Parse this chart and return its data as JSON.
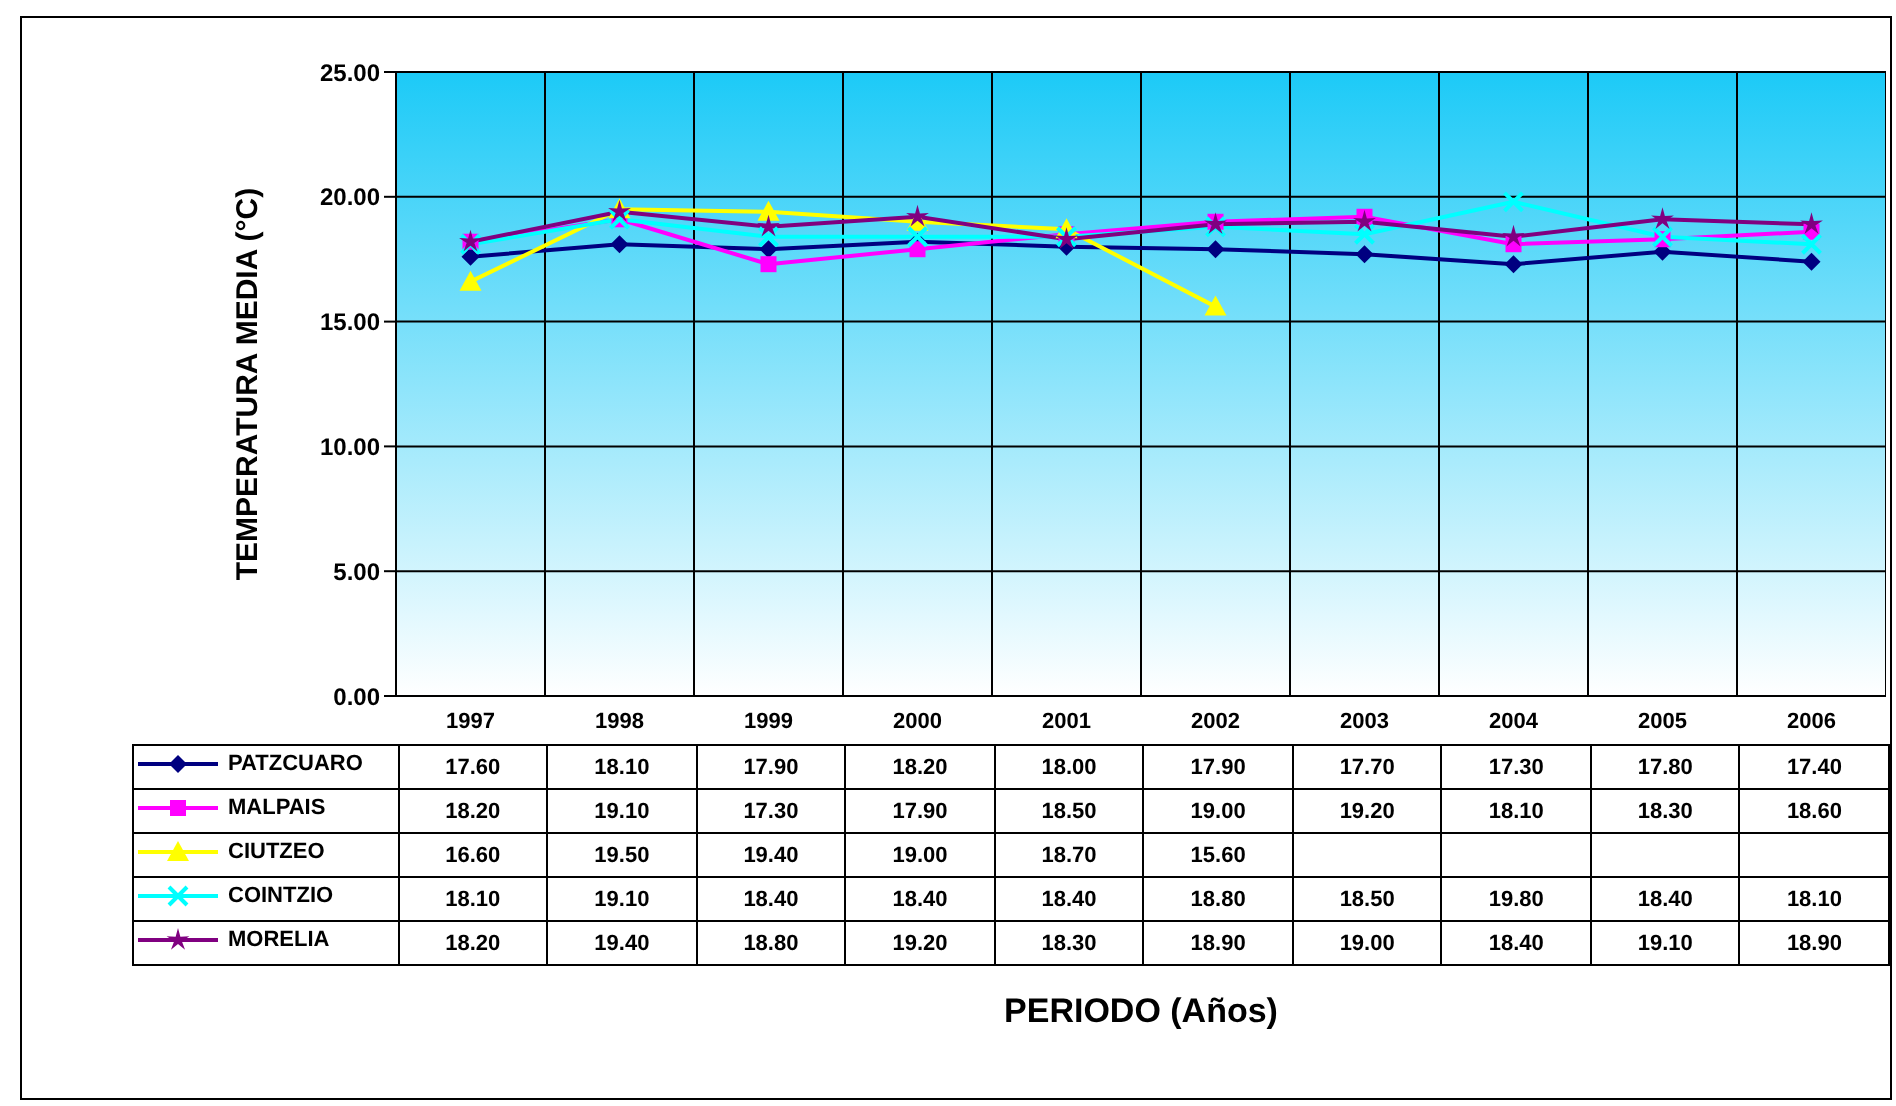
{
  "chart_data": {
    "type": "line",
    "ylabel": "TEMPERATURA MEDIA (°C)",
    "annotations": [
      "PERIODO (Años)"
    ],
    "categories": [
      "1997",
      "1998",
      "1999",
      "2000",
      "2001",
      "2002",
      "2003",
      "2004",
      "2005",
      "2006"
    ],
    "ylim": [
      0,
      25
    ],
    "yticks": [
      {
        "value": 0,
        "label": "0.00"
      },
      {
        "value": 5,
        "label": "5.00"
      },
      {
        "value": 10,
        "label": "10.00"
      },
      {
        "value": 15,
        "label": "15.00"
      },
      {
        "value": 20,
        "label": "20.00"
      },
      {
        "value": 25,
        "label": "25.00"
      }
    ],
    "grid": true,
    "legend": "bottom",
    "line_style": "solid",
    "series": [
      {
        "name": "PATZCUARO",
        "color": "#000080",
        "marker": "diamond",
        "values": [
          17.6,
          18.1,
          17.9,
          18.2,
          18.0,
          17.9,
          17.7,
          17.3,
          17.8,
          17.4
        ],
        "value_labels": [
          "17.60",
          "18.10",
          "17.90",
          "18.20",
          "18.00",
          "17.90",
          "17.70",
          "17.30",
          "17.80",
          "17.40"
        ]
      },
      {
        "name": "MALPAIS",
        "color": "#ff00ff",
        "marker": "square",
        "values": [
          18.2,
          19.1,
          17.3,
          17.9,
          18.5,
          19.0,
          19.2,
          18.1,
          18.3,
          18.6
        ],
        "value_labels": [
          "18.20",
          "19.10",
          "17.30",
          "17.90",
          "18.50",
          "19.00",
          "19.20",
          "18.10",
          "18.30",
          "18.60"
        ]
      },
      {
        "name": "CIUTZEO",
        "color": "#ffff00",
        "marker": "triangle",
        "values": [
          16.6,
          19.5,
          19.4,
          19.0,
          18.7,
          15.6,
          null,
          null,
          null,
          null
        ],
        "value_labels": [
          "16.60",
          "19.50",
          "19.40",
          "19.00",
          "18.70",
          "15.60",
          null,
          null,
          null,
          null
        ]
      },
      {
        "name": "COINTZIO",
        "color": "#00ffff",
        "marker": "cross",
        "values": [
          18.1,
          19.1,
          18.4,
          18.4,
          18.4,
          18.8,
          18.5,
          19.8,
          18.4,
          18.1
        ],
        "value_labels": [
          "18.10",
          "19.10",
          "18.40",
          "18.40",
          "18.40",
          "18.80",
          "18.50",
          "19.80",
          "18.40",
          "18.10"
        ]
      },
      {
        "name": "MORELIA",
        "color": "#800080",
        "marker": "star",
        "values": [
          18.2,
          19.4,
          18.8,
          19.2,
          18.3,
          18.9,
          19.0,
          18.4,
          19.1,
          18.9
        ],
        "value_labels": [
          "18.20",
          "19.40",
          "18.80",
          "19.20",
          "18.30",
          "18.90",
          "19.00",
          "18.40",
          "19.10",
          "18.90"
        ]
      }
    ]
  }
}
